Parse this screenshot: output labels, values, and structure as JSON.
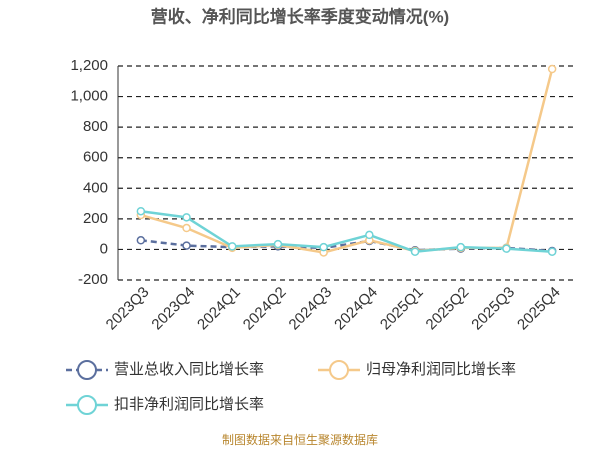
{
  "chart_data": {
    "type": "line",
    "title": "营收、净利同比增长率季度变动情况(%)",
    "source": "制图数据来自恒生聚源数据库",
    "categories": [
      "2023Q3",
      "2023Q4",
      "2024Q1",
      "2024Q2",
      "2024Q3",
      "2024Q4",
      "2025Q1",
      "2025Q2",
      "2025Q3",
      "2025Q4"
    ],
    "series": [
      {
        "name": "营业总收入同比增长率",
        "color": "#5b6f9e",
        "dashed": true,
        "values": [
          60,
          25,
          15,
          20,
          10,
          55,
          -5,
          5,
          10,
          -10
        ]
      },
      {
        "name": "归母净利润同比增长率",
        "color": "#f5c98a",
        "dashed": false,
        "values": [
          225,
          140,
          10,
          30,
          -20,
          60,
          -10,
          10,
          10,
          1180
        ]
      },
      {
        "name": "扣非净利润同比增长率",
        "color": "#6fd3d6",
        "dashed": false,
        "values": [
          250,
          210,
          20,
          35,
          15,
          95,
          -15,
          15,
          5,
          -15
        ]
      }
    ],
    "ylim": [
      -200,
      1200
    ],
    "yticks": [
      -200,
      0,
      200,
      400,
      600,
      800,
      {
        "value": 1000,
        "label": "1,000"
      },
      {
        "value": 1200,
        "label": "1,200"
      }
    ],
    "grid": true
  }
}
